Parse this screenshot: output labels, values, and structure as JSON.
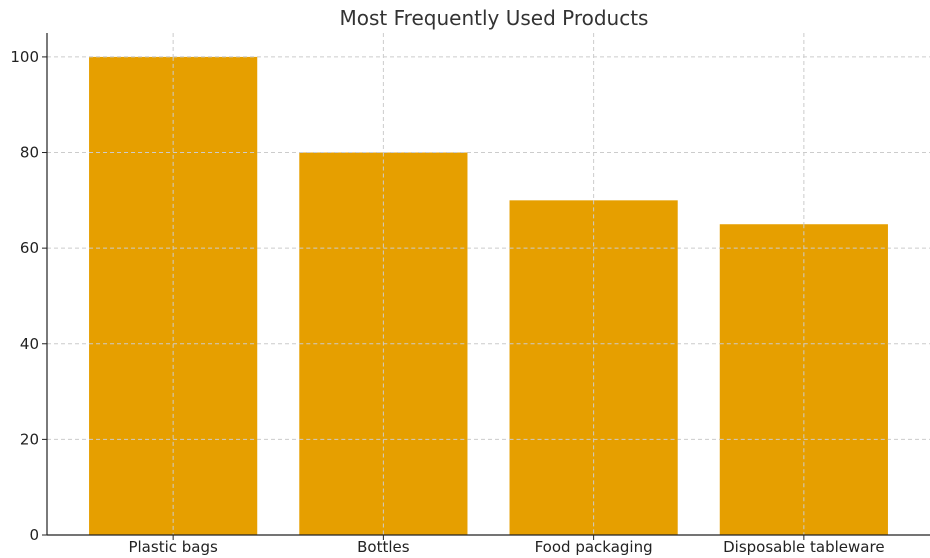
{
  "chart_data": {
    "type": "bar",
    "title": "Most Frequently Used Products",
    "categories": [
      "Plastic bags",
      "Bottles",
      "Food packaging",
      "Disposable tableware"
    ],
    "values": [
      100,
      80,
      70,
      65
    ],
    "xlabel": "",
    "ylabel": "",
    "ylim": [
      0,
      105
    ],
    "yticks": [
      0,
      20,
      40,
      60,
      80,
      100
    ],
    "grid": true,
    "bar_color": "#E69F00"
  }
}
